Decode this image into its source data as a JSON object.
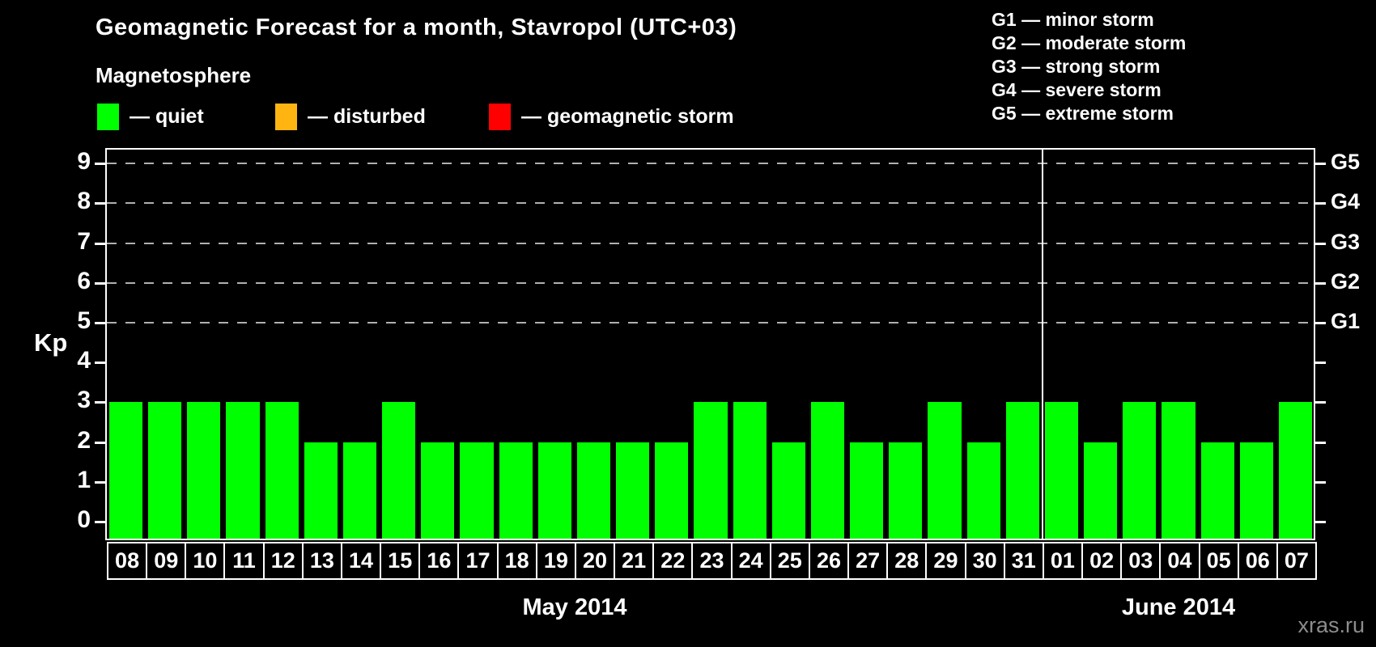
{
  "title": "Geomagnetic Forecast for a month, Stavropol (UTC+03)",
  "subtitle": "Magnetosphere",
  "legend": {
    "items": [
      {
        "name": "quiet",
        "label": "— quiet",
        "color": "#00ff00"
      },
      {
        "name": "disturbed",
        "label": "— disturbed",
        "color": "#ffb412"
      },
      {
        "name": "geomagnetic-storm",
        "label": "— geomagnetic storm",
        "color": "#ff0000"
      }
    ]
  },
  "storm_legend": [
    "G1 — minor storm",
    "G2 — moderate storm",
    "G3 — strong storm",
    "G4 — severe storm",
    "G5 — extreme storm"
  ],
  "watermark": "xras.ru",
  "chart_data": {
    "type": "bar",
    "title": "Geomagnetic Forecast for a month, Stavropol (UTC+03)",
    "ylabel": "Kp",
    "ylim": [
      0,
      9.5
    ],
    "yticks": [
      0,
      1,
      2,
      3,
      4,
      5,
      6,
      7,
      8,
      9
    ],
    "grid": {
      "style": "dashed",
      "color": "#b0b0b0",
      "at_kp": [
        5,
        6,
        7,
        8,
        9
      ]
    },
    "right_axis": [
      {
        "label": "G5",
        "kp": 9
      },
      {
        "label": "G4",
        "kp": 8
      },
      {
        "label": "G3",
        "kp": 7
      },
      {
        "label": "G2",
        "kp": 6
      },
      {
        "label": "G1",
        "kp": 5
      }
    ],
    "categories": [
      "08",
      "09",
      "10",
      "11",
      "12",
      "13",
      "14",
      "15",
      "16",
      "17",
      "18",
      "19",
      "20",
      "21",
      "22",
      "23",
      "24",
      "25",
      "26",
      "27",
      "28",
      "29",
      "30",
      "31",
      "01",
      "02",
      "03",
      "04",
      "05",
      "06",
      "07"
    ],
    "values": [
      3,
      3,
      3,
      3,
      3,
      2,
      2,
      3,
      2,
      2,
      2,
      2,
      2,
      2,
      2,
      3,
      3,
      2,
      3,
      2,
      2,
      3,
      2,
      3,
      3,
      2,
      3,
      3,
      2,
      2,
      3
    ],
    "bar_color": "#00ff00",
    "months": [
      {
        "label": "May 2014",
        "days": 24
      },
      {
        "label": "June 2014",
        "days": 7
      }
    ]
  }
}
